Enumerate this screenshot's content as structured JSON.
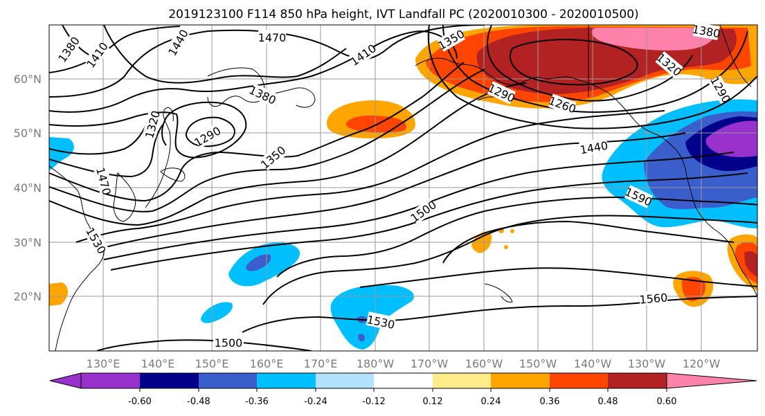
{
  "title": "2019123100 F114 850 hPa height, IVT Landfall PC (2020010300 - 2020010500)",
  "lat_labels": [
    "60°N",
    "50°N",
    "40°N",
    "30°N",
    "20°N"
  ],
  "lon_labels": [
    "130°E",
    "140°E",
    "150°E",
    "160°E",
    "170°E",
    "180°W",
    "170°W",
    "160°W",
    "150°W",
    "140°W",
    "130°W",
    "120°W"
  ],
  "contour_labels": [
    "1380",
    "1410",
    "1440",
    "1470",
    "1410",
    "1380",
    "1320",
    "1290",
    "1350",
    "1350",
    "1380",
    "1320",
    "1290",
    "1260",
    "1290",
    "1440",
    "1500",
    "1590",
    "1470",
    "1530",
    "1530",
    "1560",
    "1500"
  ],
  "colorbar": {
    "ticks": [
      "-0.60",
      "-0.48",
      "-0.36",
      "-0.24",
      "-0.12",
      "0.12",
      "0.24",
      "0.36",
      "0.48",
      "0.60"
    ],
    "colors": [
      "#9932cc",
      "#00008b",
      "#3a5fcd",
      "#00bfff",
      "#b2e2ff",
      "#ffffff",
      "#ffec8b",
      "#ffa500",
      "#ff4500",
      "#b22222",
      "#ff82ab"
    ]
  }
}
